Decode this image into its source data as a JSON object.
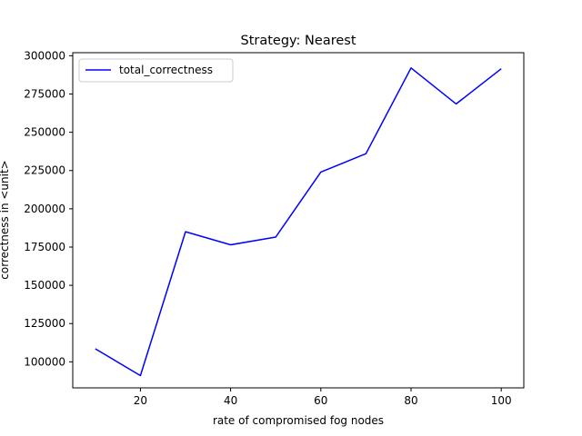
{
  "chart_data": {
    "type": "line",
    "title": "Strategy: Nearest",
    "xlabel": "rate of compromised fog nodes",
    "ylabel": "correctness in <unit>",
    "xlim": [
      5,
      105
    ],
    "ylim": [
      83000,
      302000
    ],
    "x_ticks": [
      20,
      40,
      60,
      80,
      100
    ],
    "y_ticks": [
      100000,
      125000,
      150000,
      175000,
      200000,
      225000,
      250000,
      275000,
      300000
    ],
    "grid": false,
    "legend_position": "top-left",
    "series": [
      {
        "name": "total_correctness",
        "color": "#0000ff",
        "x": [
          10,
          20,
          30,
          40,
          50,
          60,
          70,
          80,
          90,
          100
        ],
        "y": [
          108500,
          91000,
          185000,
          176500,
          181500,
          224000,
          236000,
          292000,
          268500,
          291500
        ]
      }
    ]
  }
}
